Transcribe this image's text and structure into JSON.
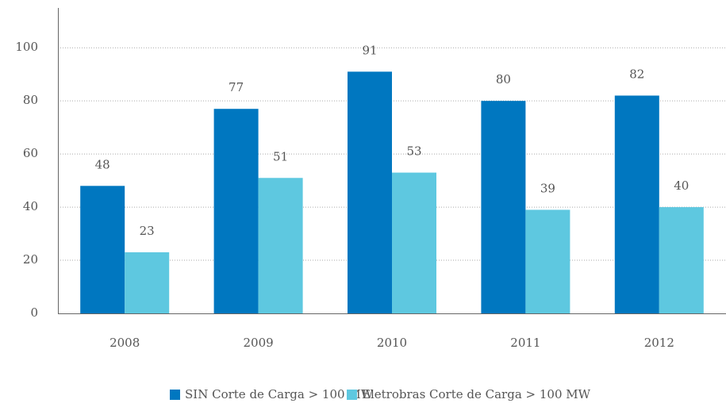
{
  "chart_data": {
    "type": "bar",
    "categories": [
      "2008",
      "2009",
      "2010",
      "2011",
      "2012"
    ],
    "series": [
      {
        "name": "SIN Corte de Carga > 100 MW",
        "color": "#0077c0",
        "values": [
          48,
          77,
          91,
          80,
          82
        ]
      },
      {
        "name": "Eletrobras Corte de Carga > 100 MW",
        "color": "#5ec8e0",
        "values": [
          23,
          51,
          53,
          39,
          40
        ]
      }
    ],
    "ylim": [
      0,
      115
    ],
    "yticks": [
      0,
      20,
      40,
      60,
      80,
      100
    ],
    "grid": true,
    "legend": "bottom"
  }
}
